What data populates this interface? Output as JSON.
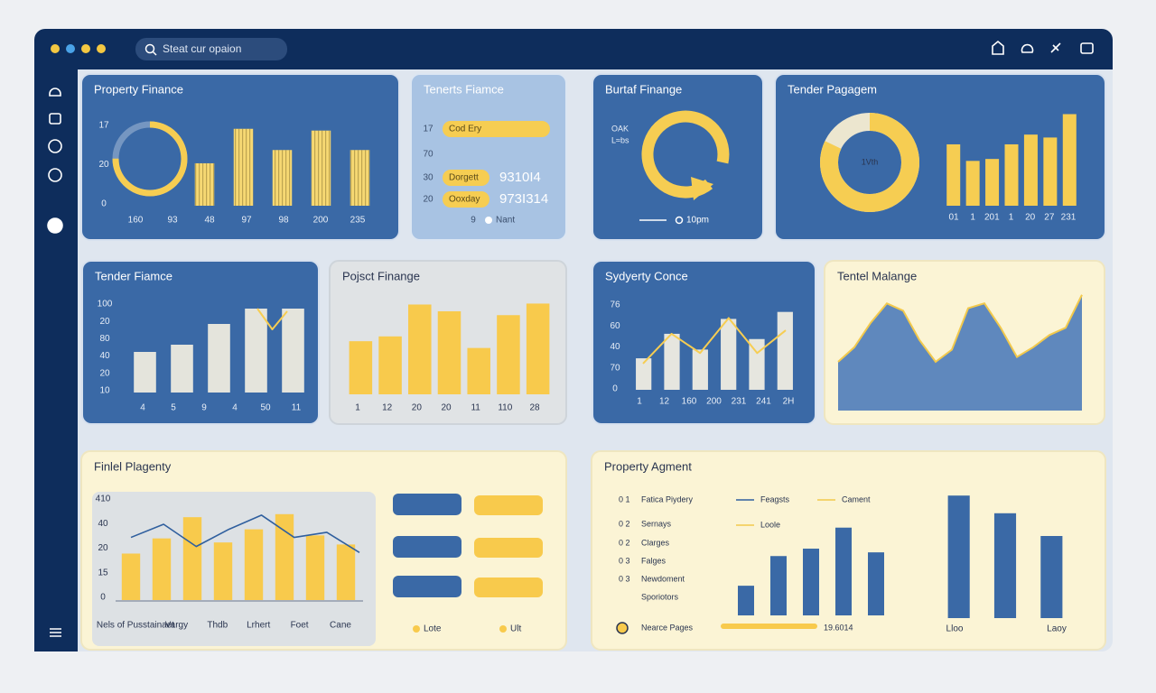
{
  "window": {
    "search": "Steat cur opaion"
  },
  "panels": [
    {
      "title": "Property Finance",
      "theme": "blue",
      "donut": {
        "value": 75,
        "color": "#f6cd52"
      },
      "bars": {
        "values": [
          48,
          87,
          63,
          85,
          63
        ],
        "ylim": [
          0,
          100
        ],
        "color": "#f6d873",
        "striped": true
      },
      "y_labels": [
        "17",
        "20",
        "0"
      ],
      "x_labels": [
        "160",
        "93",
        "48",
        "97",
        "98",
        "200",
        "235"
      ]
    },
    {
      "title": "Tenerts Fiamce",
      "theme": "light",
      "rows": [
        {
          "label": "17",
          "pill": "Cod Ery"
        },
        {
          "label": "70"
        },
        {
          "label": "30",
          "pill": "Dorgett",
          "value": "9310I4"
        },
        {
          "label": "20",
          "pill": "Ooxday",
          "value": "973I314"
        }
      ],
      "footer": [
        "9",
        "Nant"
      ]
    },
    {
      "title": "Burtaf Finange",
      "theme": "blue",
      "labels": [
        "OAK",
        "L≈bs"
      ],
      "footer": "10pm"
    },
    {
      "title": "Tender Pagagem",
      "theme": "blue",
      "donut": {
        "value": 82,
        "color": "#f6cd52",
        "center": "1Vth"
      },
      "bars": {
        "values": [
          63,
          46,
          48,
          63,
          73,
          70,
          94
        ],
        "ylim": [
          0,
          100
        ],
        "color": "#f6cd52"
      },
      "x_labels": [
        "01",
        "1",
        "201",
        "1",
        "20",
        "27",
        "231"
      ]
    },
    {
      "title": "Tender Fiamce",
      "theme": "blue",
      "y_labels": [
        "100",
        "20",
        "80",
        "40",
        "20",
        "10"
      ],
      "bars": {
        "values": [
          45,
          53,
          76,
          93,
          93
        ],
        "ylim": [
          0,
          100
        ],
        "color": "#e4e4dc"
      },
      "line": {
        "values": [
          93,
          70,
          90
        ],
        "ylim": [
          0,
          100
        ],
        "color": "#f6cd52"
      },
      "x_labels": [
        "4",
        "5",
        "9",
        "4",
        "50",
        "11"
      ]
    },
    {
      "title": "Pojsct Finange",
      "theme": "gray",
      "bars": {
        "values": [
          55,
          60,
          93,
          86,
          48,
          82,
          94
        ],
        "ylim": [
          0,
          100
        ],
        "color": "#f8ca4c"
      },
      "x_labels": [
        "1",
        "12",
        "20",
        "20",
        "11",
        "110",
        "28"
      ]
    },
    {
      "title": "Sydyerty Conce",
      "theme": "blue",
      "y_labels": [
        "76",
        "60",
        "40",
        "70",
        "0"
      ],
      "bars": {
        "values": [
          36,
          64,
          46,
          81,
          58,
          89
        ],
        "ylim": [
          0,
          100
        ],
        "color": "#e6e6df"
      },
      "line": {
        "values": [
          30,
          64,
          42,
          82,
          42,
          68
        ],
        "ylim": [
          0,
          100
        ],
        "color": "#f6cd52"
      },
      "x_labels": [
        "1",
        "12",
        "160",
        "200",
        "231",
        "241",
        "2H"
      ]
    },
    {
      "title": "Tentel Malange",
      "theme": "cream",
      "area": {
        "values": [
          40,
          52,
          72,
          88,
          82,
          58,
          40,
          50,
          84,
          88,
          68,
          44,
          52,
          62,
          68,
          95
        ],
        "ylim": [
          0,
          100
        ],
        "color": "#5f88bd",
        "line_color": "#f2c94c"
      }
    },
    {
      "title": "Finlel Plagenty",
      "theme": "cream",
      "y_labels": [
        "410",
        "40",
        "20",
        "15",
        "0"
      ],
      "bars": {
        "values": [
          46,
          61,
          82,
          57,
          70,
          85,
          64,
          55
        ],
        "ylim": [
          0,
          100
        ],
        "color": "#f8ca4c"
      },
      "line": {
        "values": [
          62,
          75,
          53,
          70,
          84,
          62,
          67,
          47
        ],
        "ylim": [
          0,
          100
        ],
        "color": "#2f5f9e"
      },
      "x_labels": [
        "Nels of Pusstainaet",
        "Vargy",
        "Thdb",
        "Lrhert",
        "Foet",
        "Cane"
      ],
      "legend": [
        "Lote",
        "Ult"
      ]
    },
    {
      "title": "Property Agment",
      "theme": "cream",
      "rows": [
        {
          "num": "0 1",
          "name": "Fatica Piydery"
        },
        {
          "num": "0 2",
          "name": "Sernays"
        },
        {
          "num": "0 2",
          "name": "Clarges"
        },
        {
          "num": "0 3",
          "name": "Falges"
        },
        {
          "num": "0 3",
          "name": "Newdoment"
        },
        {
          "name": "Sporiotors"
        }
      ],
      "legend": [
        {
          "name": "Feagsts",
          "color": "#2f5f9e"
        },
        {
          "name": "Cament",
          "color": "#f2c94c"
        },
        {
          "name": "Loole",
          "color": "#f2c94c"
        }
      ],
      "bars": {
        "values": [
          24,
          48,
          54,
          71,
          51
        ],
        "ylim": [
          0,
          100
        ],
        "color": "#3a69a6"
      },
      "bars2": {
        "values": [
          97,
          83,
          65
        ],
        "ylim": [
          0,
          100
        ],
        "color": "#3a69a6"
      },
      "x_labels": [
        "Lloo",
        "Laoy"
      ],
      "footer": [
        "Nearce Pages",
        "19.6014"
      ]
    }
  ]
}
